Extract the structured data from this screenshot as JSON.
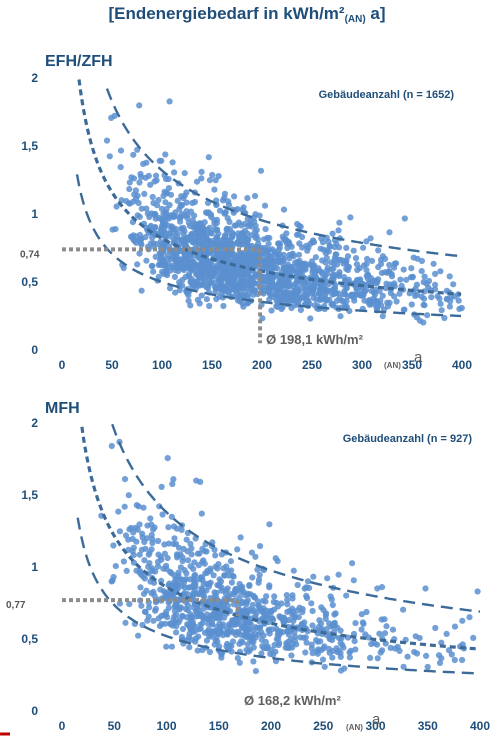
{
  "page_title": {
    "prefix": "[Endenergiebedarf in kWh/m²",
    "sub": "(AN)",
    "suffix": " a]"
  },
  "colors": {
    "title": "#1f4e79",
    "points": "#5b8fd0",
    "dashed": "#3c6b99",
    "dotted_ref": "#8c8c8c",
    "red_mark": "#c00000"
  },
  "chart_data": [
    {
      "type": "scatter",
      "title": "EFH/ZFH",
      "count_label": "Gebäudeanzahl (n = 1652)",
      "n_points": 1652,
      "xlim": [
        0,
        400
      ],
      "ylim": [
        0,
        2
      ],
      "xticks": [
        "0",
        "50",
        "100",
        "150",
        "200",
        "250",
        "300",
        "350",
        "400"
      ],
      "yticks": [
        "0",
        "0,5",
        "1",
        "1,5",
        "2"
      ],
      "x_unit_sub": "(AN)",
      "x_unit_tail": "a",
      "reference": {
        "x": 198.1,
        "y": 0.74,
        "x_label": "Ø 198,1 kWh/m²",
        "y_label": "0,74"
      },
      "trend": {
        "type": "power",
        "a": 8.2,
        "b": -0.5,
        "x_start": 15,
        "x_end": 400
      },
      "band_upper": {
        "type": "power",
        "a": 11.5,
        "b": -0.47,
        "x_start": 45,
        "x_end": 400
      },
      "band_lower": {
        "type": "power",
        "a": 5.0,
        "b": -0.5,
        "x_start": 15,
        "x_end": 400
      },
      "grid": false,
      "legend": "none"
    },
    {
      "type": "scatter",
      "title": "MFH",
      "count_label": "Gebäudeanzahl (n = 927)",
      "n_points": 927,
      "xlim": [
        0,
        400
      ],
      "ylim": [
        0,
        2
      ],
      "xticks": [
        "0",
        "50",
        "100",
        "150",
        "200",
        "250",
        "300",
        "350",
        "400"
      ],
      "yticks": [
        "0",
        "0,5",
        "1",
        "1,5",
        "2"
      ],
      "x_unit_sub": "(AN)",
      "x_unit_tail": "a",
      "reference": {
        "x": 168.2,
        "y": 0.77,
        "x_label": "Ø 168,2 kWh/m²",
        "y_label": "0,77"
      },
      "trend": {
        "type": "power",
        "a": 8.6,
        "b": -0.5,
        "x_start": 15,
        "x_end": 400
      },
      "band_upper": {
        "type": "power",
        "a": 13.8,
        "b": -0.5,
        "x_start": 30,
        "x_end": 400
      },
      "band_lower": {
        "type": "power",
        "a": 5.2,
        "b": -0.5,
        "x_start": 15,
        "x_end": 400
      },
      "grid": false,
      "legend": "none"
    }
  ]
}
